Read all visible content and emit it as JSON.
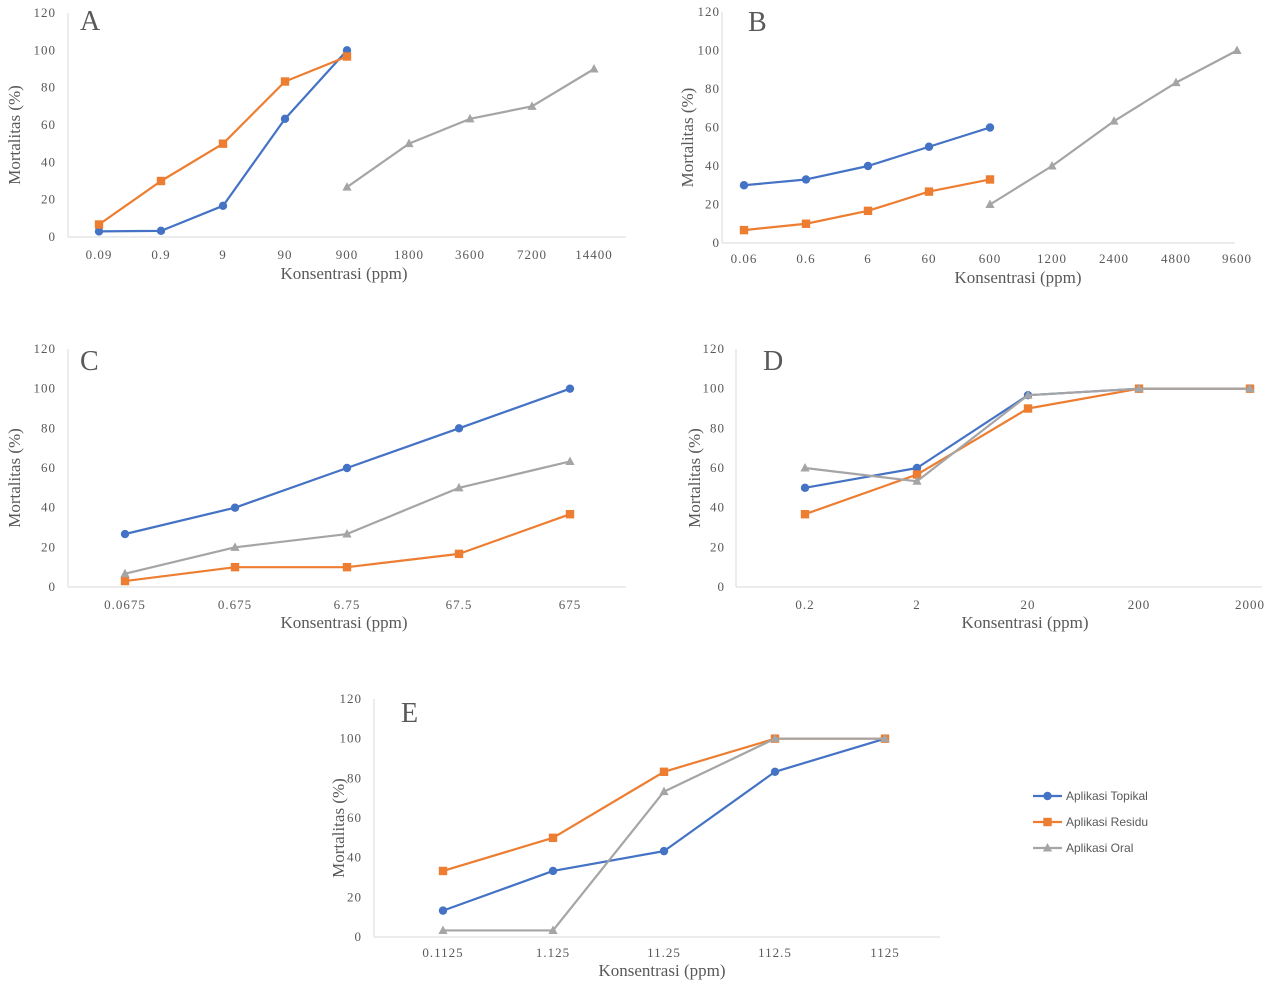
{
  "figure": {
    "legend": [
      {
        "key": "topikal",
        "label": "Aplikasi Topikal",
        "color": "#4472C4",
        "marker": "circle"
      },
      {
        "key": "residu",
        "label": "Aplikasi Residu",
        "color": "#ED7D31",
        "marker": "square"
      },
      {
        "key": "oral",
        "label": "Aplikasi Oral",
        "color": "#A5A5A5",
        "marker": "triangle"
      }
    ],
    "axis_color": "#D9D9D9",
    "text_color": "#595959"
  },
  "chart_data": [
    {
      "id": "A",
      "type": "line",
      "panel_label": "A",
      "title": "",
      "xlabel": "Konsentrasi (ppm)",
      "ylabel": "Mortalitas (%)",
      "categories": [
        "0.09",
        "0.9",
        "9",
        "90",
        "900",
        "1800",
        "3600",
        "7200",
        "14400"
      ],
      "ylim": [
        0,
        120
      ],
      "yticks": [
        0,
        20,
        40,
        60,
        80,
        100,
        120
      ],
      "grid": false,
      "series": [
        {
          "name": "Aplikasi Topikal",
          "values": [
            3,
            3.3,
            16.7,
            63.3,
            100,
            null,
            null,
            null,
            null
          ]
        },
        {
          "name": "Aplikasi Residu",
          "values": [
            6.7,
            30,
            50,
            83.3,
            96.7,
            null,
            null,
            null,
            null
          ]
        },
        {
          "name": "Aplikasi Oral",
          "values": [
            null,
            null,
            null,
            null,
            26.7,
            50,
            63.3,
            70,
            90
          ]
        }
      ]
    },
    {
      "id": "B",
      "type": "line",
      "panel_label": "B",
      "title": "",
      "xlabel": "Konsentrasi (ppm)",
      "ylabel": "Mortalitas (%)",
      "categories": [
        "0.06",
        "0.6",
        "6",
        "60",
        "600",
        "1200",
        "2400",
        "4800",
        "9600"
      ],
      "ylim": [
        0,
        120
      ],
      "yticks": [
        0,
        20,
        40,
        60,
        80,
        100,
        120
      ],
      "grid": false,
      "series": [
        {
          "name": "Aplikasi Topikal",
          "values": [
            30,
            33,
            40,
            50,
            60,
            null,
            null,
            null,
            null
          ]
        },
        {
          "name": "Aplikasi Residu",
          "values": [
            6.7,
            10,
            16.7,
            26.7,
            33,
            null,
            null,
            null,
            null
          ]
        },
        {
          "name": "Aplikasi Oral",
          "values": [
            null,
            null,
            null,
            null,
            20,
            40,
            63.3,
            83.3,
            100
          ]
        }
      ]
    },
    {
      "id": "C",
      "type": "line",
      "panel_label": "C",
      "title": "",
      "xlabel": "Konsentrasi (ppm)",
      "ylabel": "Mortalitas (%)",
      "categories": [
        "0.0675",
        "0.675",
        "6.75",
        "67.5",
        "675"
      ],
      "ylim": [
        0,
        120
      ],
      "yticks": [
        0,
        20,
        40,
        60,
        80,
        100,
        120
      ],
      "grid": false,
      "series": [
        {
          "name": "Aplikasi Topikal",
          "values": [
            26.7,
            40,
            60,
            80,
            100
          ]
        },
        {
          "name": "Aplikasi Residu",
          "values": [
            3,
            10,
            10,
            16.7,
            36.7
          ]
        },
        {
          "name": "Aplikasi Oral",
          "values": [
            6.7,
            20,
            26.7,
            50,
            63.3
          ]
        }
      ]
    },
    {
      "id": "D",
      "type": "line",
      "panel_label": "D",
      "title": "",
      "xlabel": "Konsentrasi (ppm)",
      "ylabel": "Mortalitas (%)",
      "categories": [
        "0.2",
        "2",
        "20",
        "200",
        "2000"
      ],
      "ylim": [
        0,
        120
      ],
      "yticks": [
        0,
        20,
        40,
        60,
        80,
        100,
        120
      ],
      "grid": false,
      "series": [
        {
          "name": "Aplikasi Topikal",
          "values": [
            50,
            60,
            96.7,
            100,
            100
          ]
        },
        {
          "name": "Aplikasi Residu",
          "values": [
            36.7,
            56.7,
            90,
            100,
            100
          ]
        },
        {
          "name": "Aplikasi Oral",
          "values": [
            60,
            53.3,
            96.7,
            100,
            100
          ]
        }
      ]
    },
    {
      "id": "E",
      "type": "line",
      "panel_label": "E",
      "title": "",
      "xlabel": "Konsentrasi (ppm)",
      "ylabel": "Mortalitas (%)",
      "categories": [
        "0.1125",
        "1.125",
        "11.25",
        "112.5",
        "1125"
      ],
      "ylim": [
        0,
        120
      ],
      "yticks": [
        0,
        20,
        40,
        60,
        80,
        100,
        120
      ],
      "grid": false,
      "legend_position": "right",
      "series": [
        {
          "name": "Aplikasi Topikal",
          "values": [
            13.3,
            33.3,
            43.3,
            83.3,
            100
          ]
        },
        {
          "name": "Aplikasi Residu",
          "values": [
            33.3,
            50,
            83.3,
            100,
            100
          ]
        },
        {
          "name": "Aplikasi Oral",
          "values": [
            3.3,
            3.3,
            73.3,
            100,
            100
          ]
        }
      ]
    }
  ]
}
